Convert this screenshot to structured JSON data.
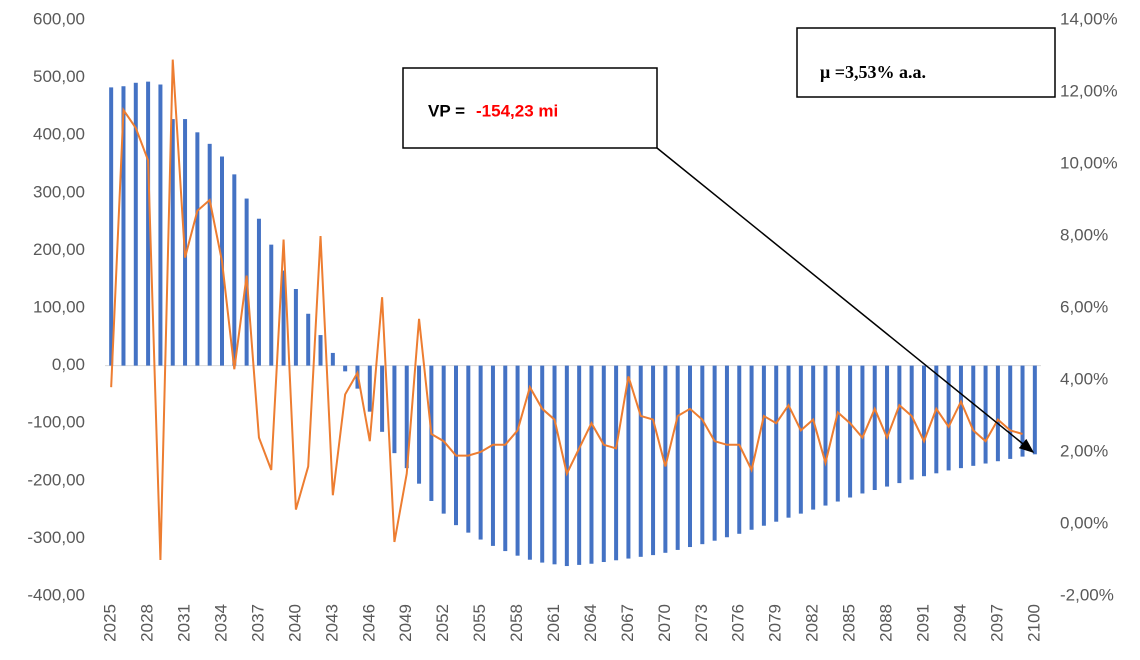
{
  "chart_data": {
    "type": "bar",
    "categories": [
      "2025",
      null,
      null,
      "2028",
      null,
      null,
      "2031",
      null,
      null,
      "2034",
      null,
      null,
      "2037",
      null,
      null,
      "2040",
      null,
      null,
      "2043",
      null,
      null,
      "2046",
      null,
      null,
      "2049",
      null,
      null,
      "2052",
      null,
      null,
      "2055",
      null,
      null,
      "2058",
      null,
      null,
      "2061",
      null,
      null,
      "2064",
      null,
      null,
      "2067",
      null,
      null,
      "2070",
      null,
      null,
      "2073",
      null,
      null,
      "2076",
      null,
      null,
      "2079",
      null,
      null,
      "2082",
      null,
      null,
      "2085",
      null,
      null,
      "2088",
      null,
      null,
      "2091",
      null,
      null,
      "2094",
      null,
      null,
      "2097",
      null,
      null,
      "2100"
    ],
    "series": [
      {
        "color": "#4472c4",
        "values": [
          483,
          485,
          491,
          493,
          488,
          428,
          428,
          405,
          385,
          363,
          332,
          290,
          255,
          210,
          165,
          133,
          90,
          53,
          22,
          -10,
          -40,
          -80,
          -115,
          -152,
          -178,
          -205,
          -235,
          -257,
          -277,
          -290,
          -302,
          -313,
          -322,
          -330,
          -337,
          -342,
          -345,
          -348,
          -346,
          -344,
          -341,
          -338,
          -335,
          -332,
          -329,
          -325,
          -320,
          -315,
          -310,
          -304,
          -298,
          -292,
          -285,
          -278,
          -271,
          -264,
          -257,
          -250,
          -243,
          -236,
          -229,
          -222,
          -216,
          -210,
          -204,
          -198,
          -192,
          -187,
          -182,
          -178,
          -174,
          -170,
          -166,
          -162,
          -158,
          -154
        ]
      },
      {
        "color": "#ed7d31",
        "type": "line",
        "axis": "y2",
        "values": [
          3.8,
          11.5,
          11.0,
          10.1,
          -1.0,
          12.9,
          7.4,
          8.7,
          9.0,
          7.3,
          4.3,
          6.9,
          2.4,
          1.5,
          7.9,
          0.4,
          1.6,
          8.0,
          0.8,
          3.6,
          4.2,
          2.3,
          6.3,
          -0.5,
          1.4,
          5.7,
          2.5,
          2.3,
          1.9,
          1.9,
          2.0,
          2.2,
          2.2,
          2.6,
          3.8,
          3.2,
          2.9,
          1.4,
          2.1,
          2.8,
          2.2,
          2.1,
          4.1,
          3.0,
          2.9,
          1.6,
          3.0,
          3.2,
          2.9,
          2.3,
          2.2,
          2.2,
          1.5,
          3.0,
          2.8,
          3.3,
          2.6,
          2.9,
          1.7,
          3.1,
          2.8,
          2.4,
          3.2,
          2.4,
          3.3,
          3.0,
          2.3,
          3.2,
          2.7,
          3.4,
          2.6,
          2.3,
          2.9,
          2.6,
          2.5,
          null
        ]
      }
    ],
    "ylim": [
      -400,
      600
    ],
    "yticks": [
      {
        "value": -400,
        "label": "-400,00"
      },
      {
        "value": -300,
        "label": "-300,00"
      },
      {
        "value": -200,
        "label": "-200,00"
      },
      {
        "value": -100,
        "label": "-100,00"
      },
      {
        "value": 0,
        "label": "0,00"
      },
      {
        "value": 100,
        "label": "100,00"
      },
      {
        "value": 200,
        "label": "200,00"
      },
      {
        "value": 300,
        "label": "300,00"
      },
      {
        "value": 400,
        "label": "400,00"
      },
      {
        "value": 500,
        "label": "500,00"
      },
      {
        "value": 600,
        "label": "600,00"
      }
    ],
    "y2lim": [
      -2,
      14
    ],
    "y2ticks": [
      {
        "value": -2,
        "label": "-2,00%"
      },
      {
        "value": 0,
        "label": "0,00%"
      },
      {
        "value": 2,
        "label": "2,00%"
      },
      {
        "value": 4,
        "label": "4,00%"
      },
      {
        "value": 6,
        "label": "6,00%"
      },
      {
        "value": 8,
        "label": "8,00%"
      },
      {
        "value": 10,
        "label": "10,00%"
      },
      {
        "value": 12,
        "label": "12,00%"
      },
      {
        "value": 14,
        "label": "14,00%"
      }
    ],
    "annotations": {
      "vp_label": "VP =",
      "vp_value": "-154,23 mi",
      "mu": "μ =3,53% a.a."
    }
  }
}
